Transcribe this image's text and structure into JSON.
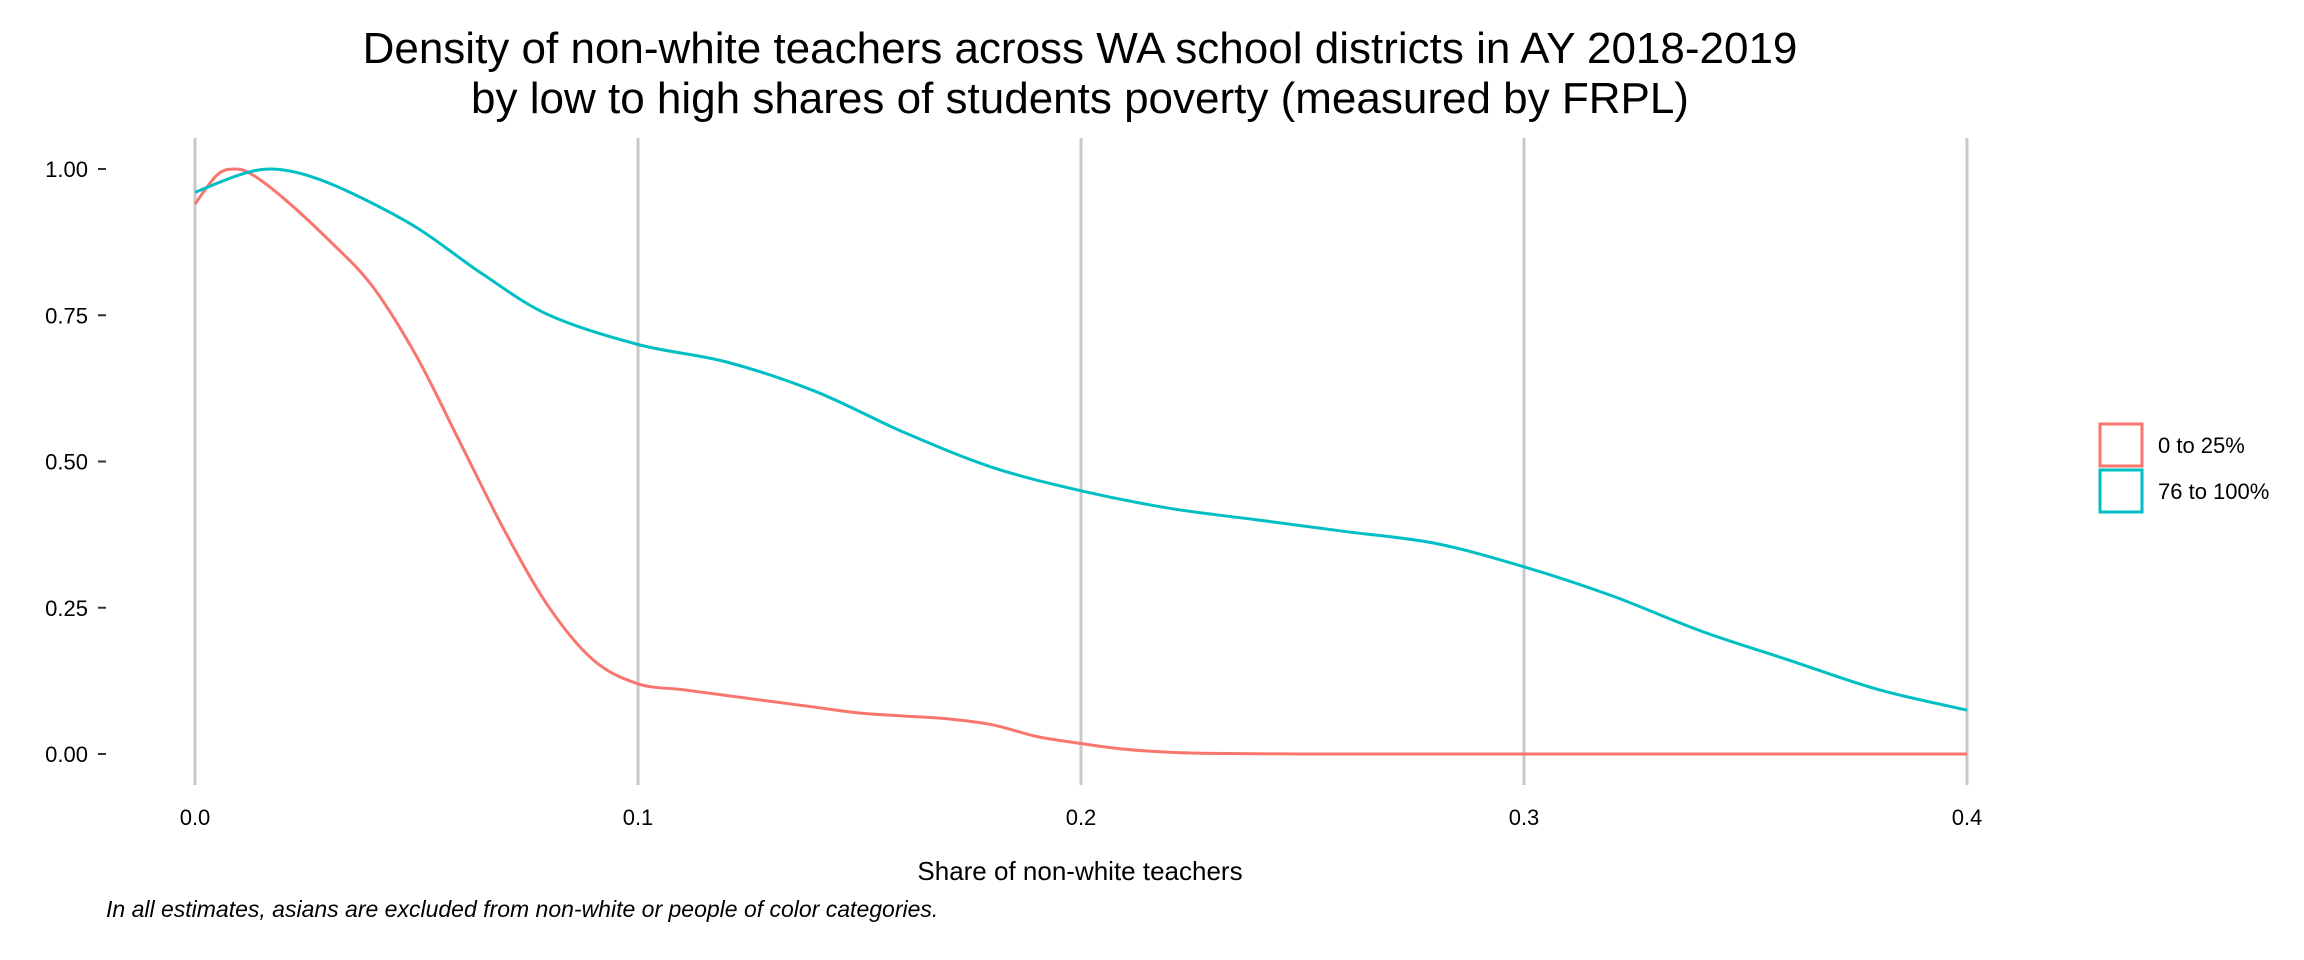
{
  "chart_data": {
    "type": "line",
    "title": "Density of non-white teachers across WA school districts in AY 2018-2019",
    "subtitle": "by low to high shares of students poverty (measured by FRPL)",
    "xlabel": "Share of non-white teachers",
    "ylabel": "",
    "caption": "In all estimates, asians are excluded from non-white or people of color categories.",
    "xlim": [
      0.0,
      0.4
    ],
    "ylim": [
      0.0,
      1.0
    ],
    "x_ticks": [
      "0.0",
      "0.1",
      "0.2",
      "0.3",
      "0.4"
    ],
    "y_ticks": [
      "0.00",
      "0.25",
      "0.50",
      "0.75",
      "1.00"
    ],
    "grid": "vertical major gridlines only",
    "legend_position": "right",
    "series": [
      {
        "name": "0 to 25%",
        "color": "#F8766D",
        "x": [
          0.0,
          0.005,
          0.009,
          0.013,
          0.02,
          0.03,
          0.04,
          0.05,
          0.06,
          0.07,
          0.08,
          0.09,
          0.1,
          0.11,
          0.12,
          0.13,
          0.14,
          0.15,
          0.16,
          0.17,
          0.18,
          0.19,
          0.2,
          0.21,
          0.22,
          0.23,
          0.25,
          0.3,
          0.35,
          0.4
        ],
        "y": [
          0.94,
          0.99,
          1.0,
          0.99,
          0.95,
          0.88,
          0.8,
          0.68,
          0.53,
          0.38,
          0.25,
          0.16,
          0.12,
          0.11,
          0.1,
          0.09,
          0.08,
          0.07,
          0.065,
          0.06,
          0.05,
          0.03,
          0.018,
          0.008,
          0.003,
          0.001,
          0.0,
          0.0,
          0.0,
          0.0
        ]
      },
      {
        "name": "76 to 100%",
        "color": "#00BFC4",
        "x": [
          0.0,
          0.01,
          0.017,
          0.025,
          0.035,
          0.05,
          0.065,
          0.08,
          0.1,
          0.12,
          0.14,
          0.16,
          0.18,
          0.2,
          0.22,
          0.24,
          0.26,
          0.28,
          0.3,
          0.32,
          0.34,
          0.36,
          0.38,
          0.4
        ],
        "y": [
          0.96,
          0.99,
          1.0,
          0.99,
          0.96,
          0.9,
          0.82,
          0.75,
          0.7,
          0.67,
          0.62,
          0.55,
          0.49,
          0.45,
          0.42,
          0.4,
          0.38,
          0.36,
          0.32,
          0.27,
          0.21,
          0.16,
          0.11,
          0.075
        ]
      }
    ]
  }
}
